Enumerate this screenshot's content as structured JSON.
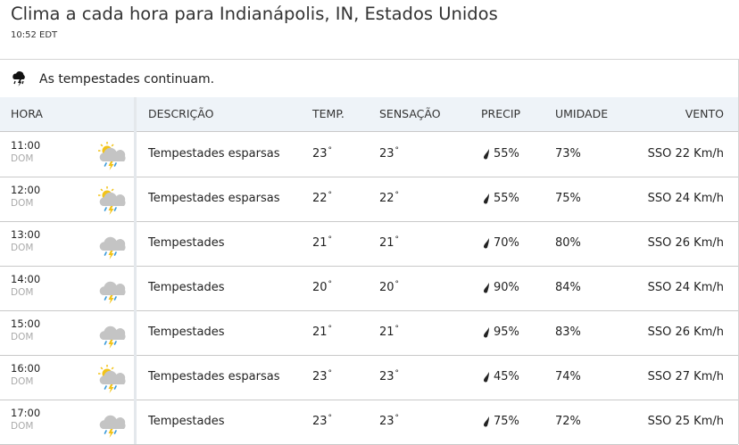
{
  "header": {
    "title": "Clima a cada hora para Indianápolis, IN, Estados Unidos",
    "time": "10:52 EDT"
  },
  "alert": {
    "text": "As tempestades continuam.",
    "icon": "storm-cloud-icon"
  },
  "columns": {
    "hora": "HORA",
    "descricao": "DESCRIÇÃO",
    "temp": "TEMP.",
    "sensacao": "SENSAÇÃO",
    "precip": "PRECIP",
    "umidade": "UMIDADE",
    "vento": "VENTO"
  },
  "colors": {
    "header_bg": "#eef3f8",
    "sun": "#f2c318",
    "rain": "#3a9ad9",
    "bolt": "#f2c318"
  },
  "rows": [
    {
      "time": "11:00",
      "day": "DOM",
      "icon": "scattered-thunderstorms-icon",
      "description": "Tempestades esparsas",
      "temp": "23",
      "feels": "23",
      "precip": "55%",
      "humidity": "73%",
      "wind": "SSO 22 Km/h"
    },
    {
      "time": "12:00",
      "day": "DOM",
      "icon": "scattered-thunderstorms-icon",
      "description": "Tempestades esparsas",
      "temp": "22",
      "feels": "22",
      "precip": "55%",
      "humidity": "75%",
      "wind": "SSO 24 Km/h"
    },
    {
      "time": "13:00",
      "day": "DOM",
      "icon": "thunderstorms-icon",
      "description": "Tempestades",
      "temp": "21",
      "feels": "21",
      "precip": "70%",
      "humidity": "80%",
      "wind": "SSO 26 Km/h"
    },
    {
      "time": "14:00",
      "day": "DOM",
      "icon": "thunderstorms-icon",
      "description": "Tempestades",
      "temp": "20",
      "feels": "20",
      "precip": "90%",
      "humidity": "84%",
      "wind": "SSO 24 Km/h"
    },
    {
      "time": "15:00",
      "day": "DOM",
      "icon": "thunderstorms-icon",
      "description": "Tempestades",
      "temp": "21",
      "feels": "21",
      "precip": "95%",
      "humidity": "83%",
      "wind": "SSO 26 Km/h"
    },
    {
      "time": "16:00",
      "day": "DOM",
      "icon": "scattered-thunderstorms-icon",
      "description": "Tempestades esparsas",
      "temp": "23",
      "feels": "23",
      "precip": "45%",
      "humidity": "74%",
      "wind": "SSO 27 Km/h"
    },
    {
      "time": "17:00",
      "day": "DOM",
      "icon": "thunderstorms-icon",
      "description": "Tempestades",
      "temp": "23",
      "feels": "23",
      "precip": "75%",
      "humidity": "72%",
      "wind": "SSO 25 Km/h"
    }
  ]
}
